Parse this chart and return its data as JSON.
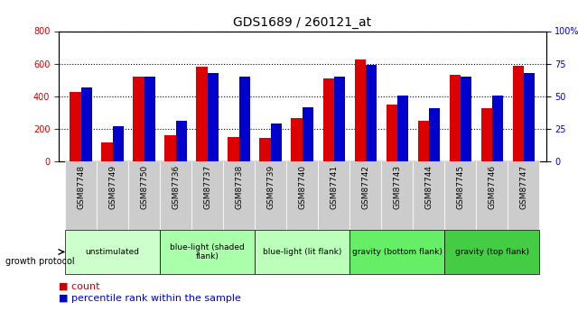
{
  "title": "GDS1689 / 260121_at",
  "samples": [
    "GSM87748",
    "GSM87749",
    "GSM87750",
    "GSM87736",
    "GSM87737",
    "GSM87738",
    "GSM87739",
    "GSM87740",
    "GSM87741",
    "GSM87742",
    "GSM87743",
    "GSM87744",
    "GSM87745",
    "GSM87746",
    "GSM87747"
  ],
  "counts": [
    430,
    120,
    520,
    165,
    580,
    150,
    145,
    265,
    510,
    625,
    350,
    248,
    530,
    330,
    585
  ],
  "pct_rank": [
    57,
    27,
    65,
    31,
    68,
    65,
    29,
    42,
    65,
    74,
    51,
    41,
    65,
    51,
    68
  ],
  "ylim_left": [
    0,
    800
  ],
  "ylim_right": [
    0,
    100
  ],
  "yticks_left": [
    0,
    200,
    400,
    600,
    800
  ],
  "yticks_right": [
    0,
    25,
    50,
    75,
    100
  ],
  "groups": [
    {
      "label": "unstimulated",
      "start": 0,
      "end": 3,
      "color": "#ccffcc"
    },
    {
      "label": "blue-light (shaded\nflank)",
      "start": 3,
      "end": 6,
      "color": "#aaffaa"
    },
    {
      "label": "blue-light (lit flank)",
      "start": 6,
      "end": 9,
      "color": "#bbffbb"
    },
    {
      "label": "gravity (bottom flank)",
      "start": 9,
      "end": 12,
      "color": "#66ee66"
    },
    {
      "label": "gravity (top flank)",
      "start": 12,
      "end": 15,
      "color": "#44cc44"
    }
  ],
  "bar_color_red": "#dd0000",
  "bar_color_blue": "#0000cc",
  "grid_color": "#000000",
  "tick_color_left": "#cc0000",
  "tick_color_right": "#0000cc",
  "bg_plot": "#ffffff",
  "bg_xticklabels": "#cccccc",
  "legend_count_color": "#cc0000",
  "legend_pct_color": "#0000cc"
}
